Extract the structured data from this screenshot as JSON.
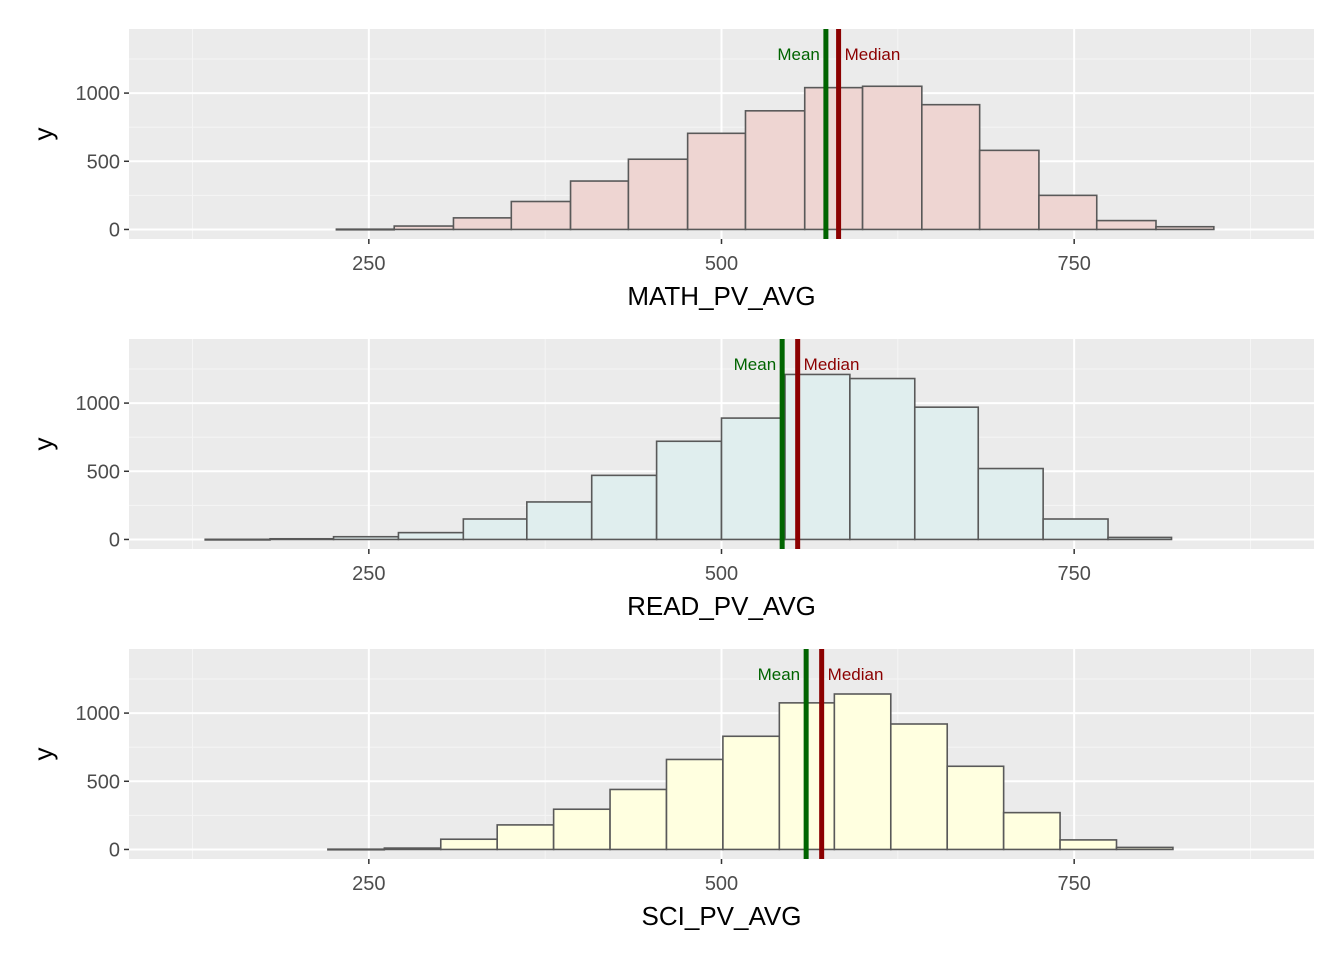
{
  "colors": {
    "panel_background": "#ebebeb",
    "grid_major": "#ffffff",
    "grid_minor": "#f5f5f5",
    "bar_border": "#595959",
    "mean_line": "#006400",
    "median_line": "#8b0000"
  },
  "chart_data": [
    {
      "type": "histogram",
      "xlabel": "MATH_PV_AVG",
      "ylabel": "y",
      "xlim": [
        80,
        920
      ],
      "ylim": [
        -70,
        1470
      ],
      "x_ticks": [
        250,
        500,
        750
      ],
      "y_ticks": [
        0,
        500,
        1000
      ],
      "grid": true,
      "bar_fill": "#eed5d2",
      "bin_edges": [
        227,
        268,
        310,
        351,
        393,
        434,
        476,
        517,
        559,
        600,
        642,
        683,
        725,
        766,
        808,
        849
      ],
      "counts": [
        2,
        25,
        85,
        205,
        355,
        515,
        705,
        870,
        1040,
        1050,
        915,
        580,
        250,
        65,
        20
      ],
      "mean": 574,
      "median": 583,
      "mean_label": "Mean",
      "median_label": "Median"
    },
    {
      "type": "histogram",
      "xlabel": "READ_PV_AVG",
      "ylabel": "y",
      "xlim": [
        80,
        920
      ],
      "ylim": [
        -70,
        1470
      ],
      "x_ticks": [
        250,
        500,
        750
      ],
      "y_ticks": [
        0,
        500,
        1000
      ],
      "grid": true,
      "bar_fill": "#e0eeee",
      "bin_edges": [
        134,
        180,
        225,
        271,
        317,
        362,
        408,
        454,
        500,
        545,
        591,
        637,
        682,
        728,
        774,
        819
      ],
      "counts": [
        1,
        5,
        20,
        50,
        150,
        275,
        470,
        720,
        890,
        1210,
        1180,
        970,
        520,
        150,
        15
      ],
      "mean": 543,
      "median": 554,
      "mean_label": "Mean",
      "median_label": "Median"
    },
    {
      "type": "histogram",
      "xlabel": "SCI_PV_AVG",
      "ylabel": "y",
      "xlim": [
        80,
        920
      ],
      "ylim": [
        -70,
        1470
      ],
      "x_ticks": [
        250,
        500,
        750
      ],
      "y_ticks": [
        0,
        500,
        1000
      ],
      "grid": true,
      "bar_fill": "#ffffe0",
      "bin_edges": [
        221,
        261,
        301,
        341,
        381,
        421,
        461,
        501,
        541,
        580,
        620,
        660,
        700,
        740,
        780,
        820
      ],
      "counts": [
        2,
        10,
        75,
        180,
        295,
        440,
        660,
        830,
        1075,
        1140,
        920,
        610,
        270,
        70,
        15
      ],
      "mean": 560,
      "median": 571,
      "mean_label": "Mean",
      "median_label": "Median"
    }
  ]
}
